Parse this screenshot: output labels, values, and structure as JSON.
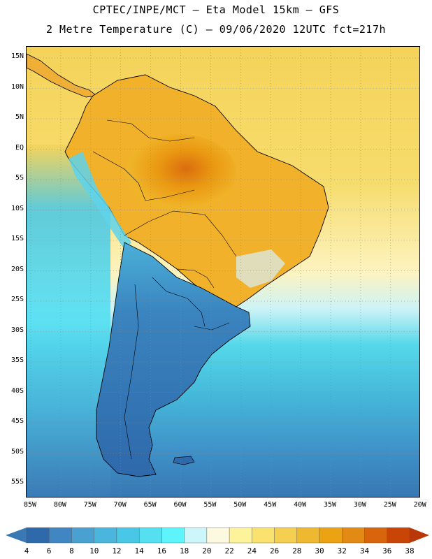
{
  "title": {
    "line1": "CPTEC/INPE/MCT –  Eta Model 15km – GFS",
    "line2": "2 Metre Temperature (C) – 09/06/2020 12UTC fct=217h"
  },
  "map": {
    "region": "South America",
    "lat_labels": [
      "15N",
      "10N",
      "5N",
      "EQ",
      "5S",
      "10S",
      "15S",
      "20S",
      "25S",
      "30S",
      "35S",
      "40S",
      "45S",
      "50S",
      "55S"
    ],
    "lon_labels": [
      "85W",
      "80W",
      "75W",
      "70W",
      "65W",
      "60W",
      "55W",
      "50W",
      "45W",
      "40W",
      "35W",
      "30W",
      "25W",
      "20W"
    ]
  },
  "colorbar": {
    "labels": [
      "4",
      "6",
      "8",
      "10",
      "12",
      "14",
      "16",
      "18",
      "20",
      "22",
      "24",
      "26",
      "28",
      "30",
      "32",
      "34",
      "36",
      "38"
    ],
    "colors": [
      "#3a78b4",
      "#2e69ab",
      "#3f86c3",
      "#4aa1d1",
      "#4bb6dd",
      "#48c8e6",
      "#55e0f2",
      "#5ef4fb",
      "#cdf6fb",
      "#fdf8e0",
      "#fdf39b",
      "#f9e26e",
      "#f4cf50",
      "#eeb830",
      "#eba314",
      "#e38a14",
      "#d8650c",
      "#c84506",
      "#b8380a"
    ]
  }
}
